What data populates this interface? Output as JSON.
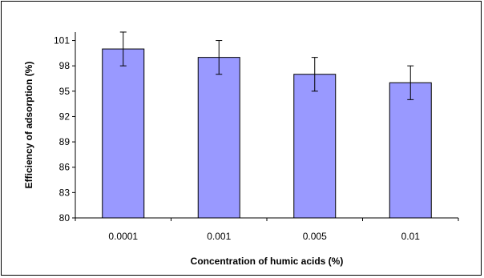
{
  "chart_data": {
    "type": "bar",
    "title": "",
    "xlabel": "Concentration of humic acids (%)",
    "ylabel": "Efficiency of adsorption (%)",
    "categories": [
      "0.0001",
      "0.001",
      "0.005",
      "0.01"
    ],
    "values": [
      100,
      99,
      97,
      96
    ],
    "error": [
      2,
      2,
      2,
      2
    ],
    "ylim": [
      80,
      102
    ],
    "yticks": [
      "80",
      "83",
      "86",
      "89",
      "92",
      "95",
      "98",
      "101"
    ],
    "ytick_values": [
      80,
      83,
      86,
      89,
      92,
      95,
      98,
      101
    ],
    "grid": false,
    "legend": "none",
    "colors": {
      "bar_fill": "#9999ff",
      "bar_stroke": "#000000",
      "axis": "#000000"
    }
  }
}
